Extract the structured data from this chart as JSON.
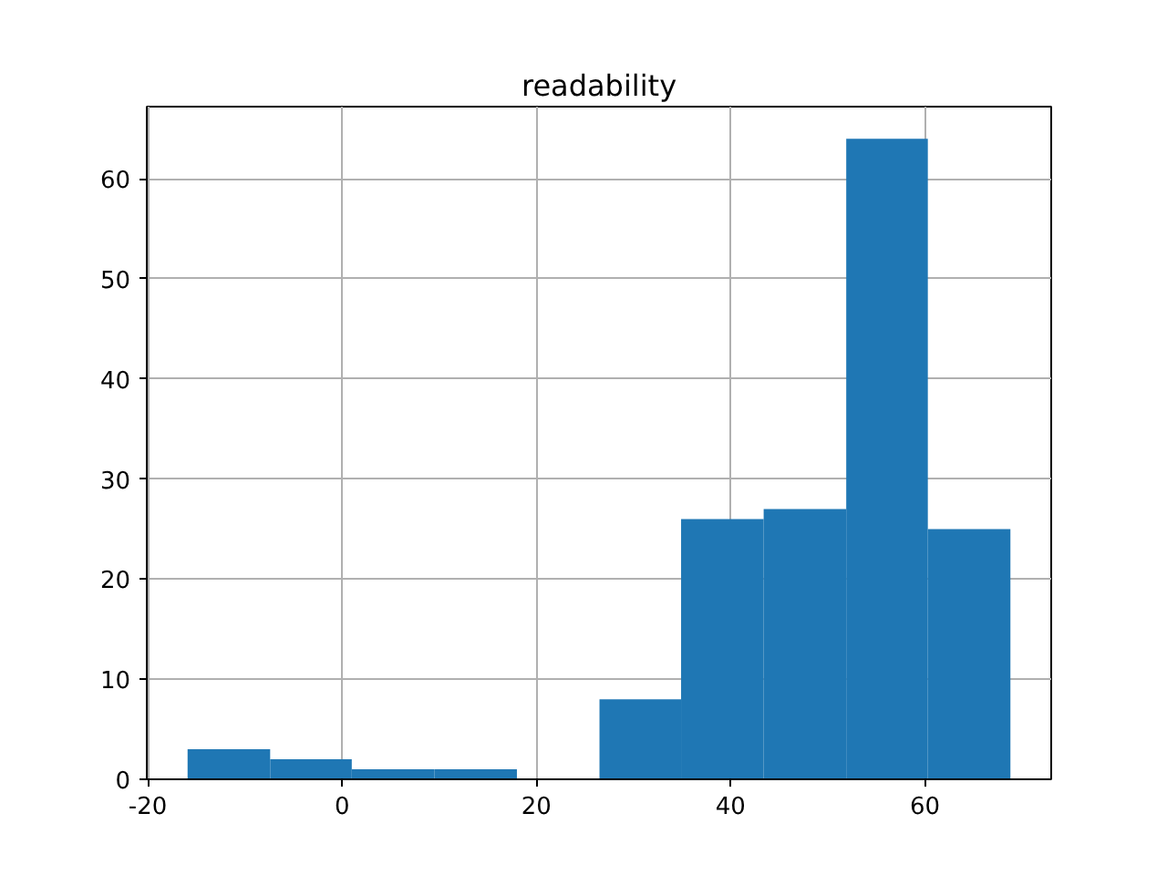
{
  "chart_data": {
    "type": "histogram",
    "title": "readability",
    "bins": [
      -15.9,
      -7.4,
      1.0,
      9.5,
      18.0,
      26.5,
      34.9,
      43.4,
      51.9,
      60.3,
      68.8
    ],
    "values": [
      3,
      2,
      1,
      1,
      0,
      8,
      26,
      27,
      64,
      25
    ],
    "color": "#1f77b4",
    "xlim": [
      -20.1,
      73.0
    ],
    "xticks": [
      -20,
      0,
      20,
      40,
      60
    ],
    "ylim": [
      0,
      67.2
    ],
    "yticks": [
      0,
      10,
      20,
      30,
      40,
      50,
      60
    ],
    "grid": true
  }
}
